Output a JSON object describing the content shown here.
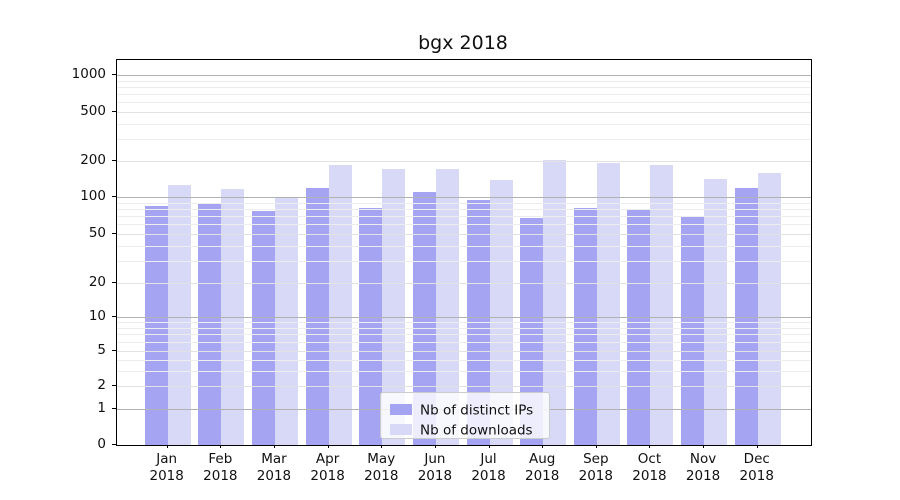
{
  "chart_data": {
    "type": "bar",
    "title": "bgx 2018",
    "categories": [
      "Jan 2018",
      "Feb 2018",
      "Mar 2018",
      "Apr 2018",
      "May 2018",
      "Jun 2018",
      "Jul 2018",
      "Aug 2018",
      "Sep 2018",
      "Oct 2018",
      "Nov 2018",
      "Dec 2018"
    ],
    "series": [
      {
        "name": "Nb of distinct IPs",
        "values": [
          85,
          88,
          77,
          120,
          82,
          110,
          94,
          68,
          82,
          80,
          70,
          120
        ]
      },
      {
        "name": "Nb of downloads",
        "values": [
          125,
          117,
          98,
          185,
          172,
          171,
          138,
          205,
          194,
          184,
          141,
          158
        ]
      }
    ],
    "xlabel": "",
    "ylabel": "",
    "yscale": "symlog",
    "yticks": [
      0,
      1,
      2,
      5,
      10,
      20,
      50,
      100,
      200,
      500,
      1000
    ],
    "ylim": [
      0,
      1400
    ],
    "grid": "both",
    "legend_position": "lower center"
  },
  "colors": {
    "bar_distinct_ips": "#a4a4f3",
    "bar_downloads": "#d8d8f7",
    "grid_major": "#b2b2b2",
    "grid_minor": "#e2e2e2",
    "grid_minor_faint": "#ededed",
    "axis_spine": "#000000",
    "text": "#111111",
    "legend_border": "#cccccc"
  }
}
